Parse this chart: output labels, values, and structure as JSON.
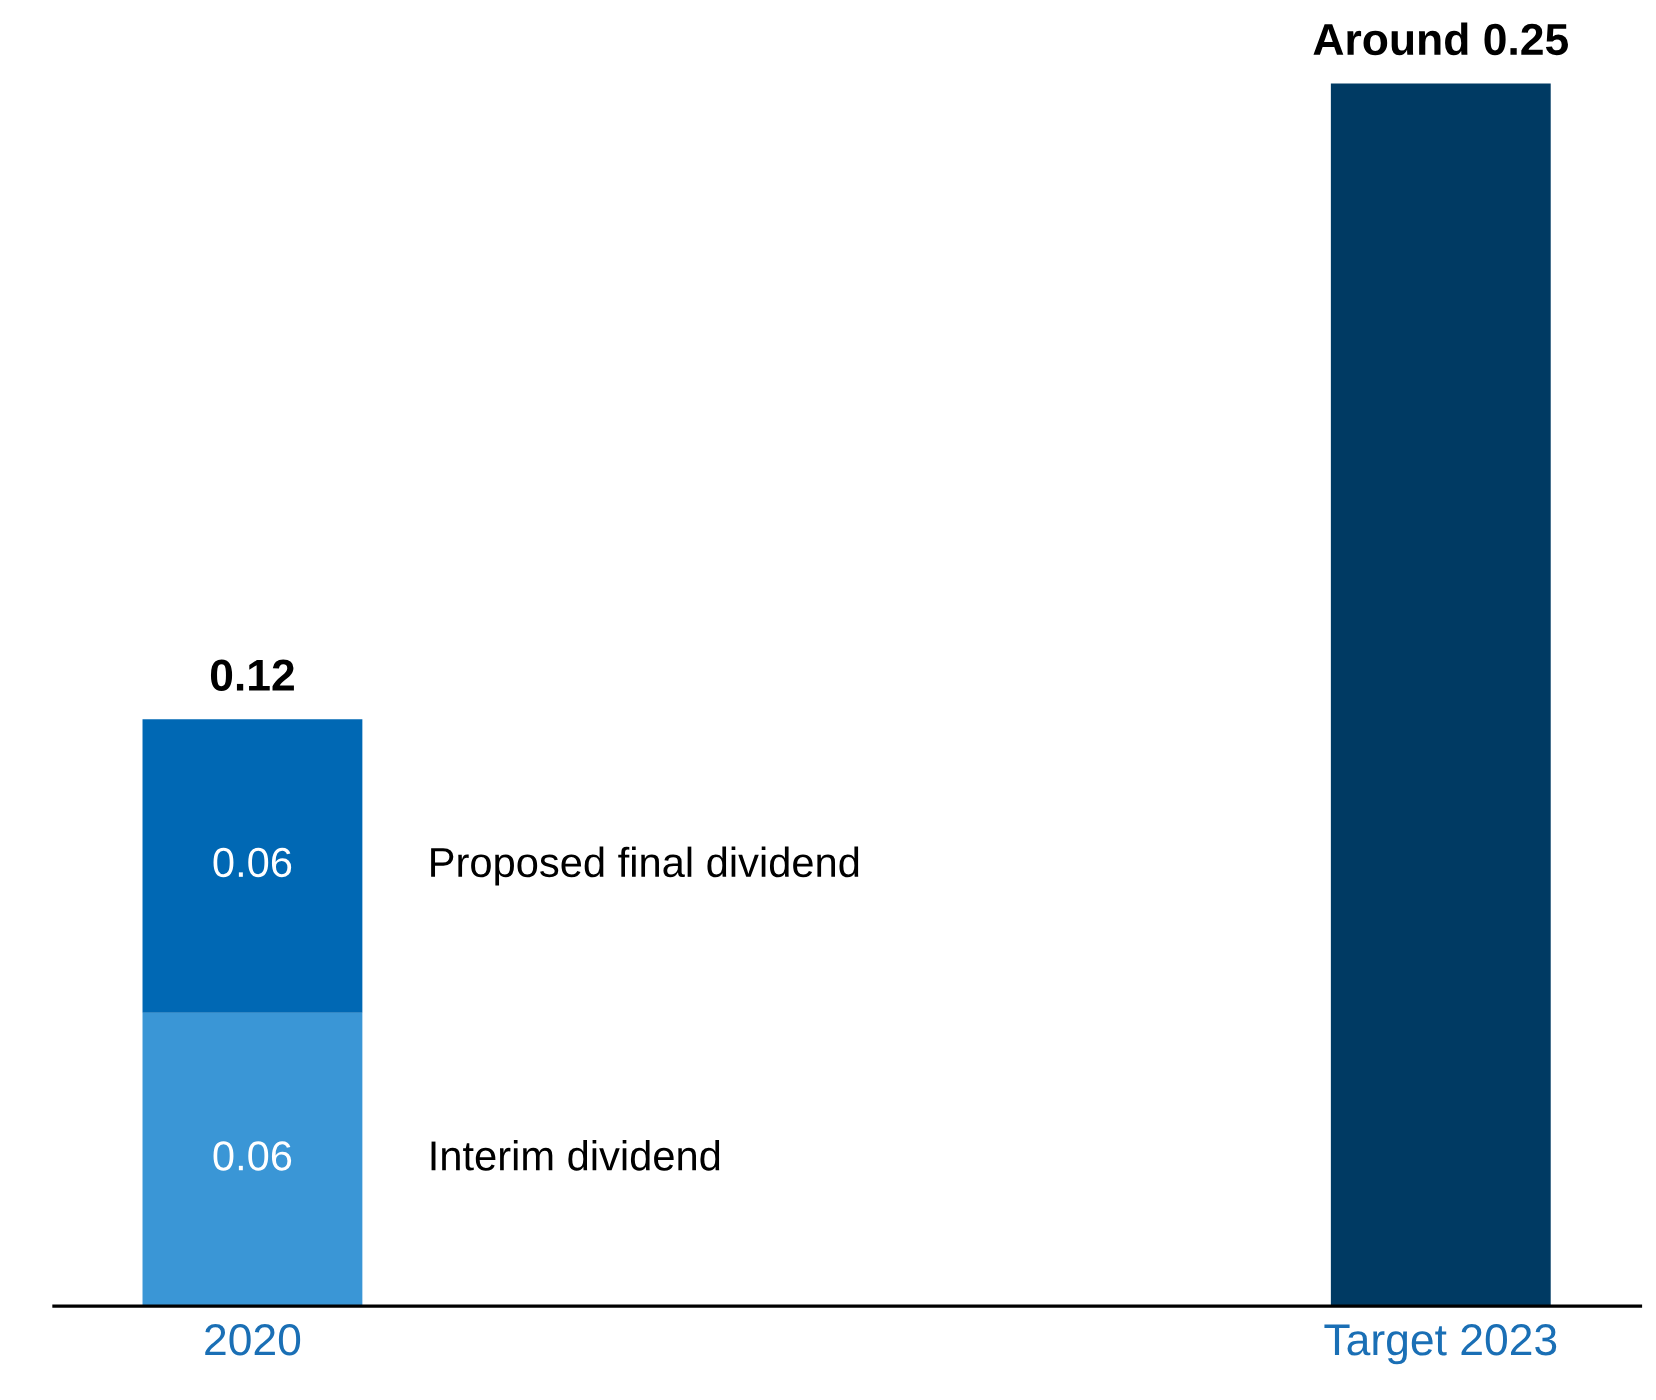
{
  "chart_data": {
    "type": "bar",
    "stacked": true,
    "categories": [
      "2020",
      "Target 2023"
    ],
    "series": [
      {
        "name": "Interim dividend",
        "color": "#3a96d6",
        "values": [
          0.06,
          null
        ],
        "value_labels": [
          "0.06",
          null
        ]
      },
      {
        "name": "Proposed final dividend",
        "color": "#0068b4",
        "values": [
          0.06,
          null
        ],
        "value_labels": [
          "0.06",
          null
        ]
      },
      {
        "color": "#003a63",
        "values": [
          null,
          0.25
        ]
      }
    ],
    "totals": [
      "0.12",
      "Around 0.25"
    ],
    "tick_labels": "x",
    "grid": false,
    "legend": false
  }
}
